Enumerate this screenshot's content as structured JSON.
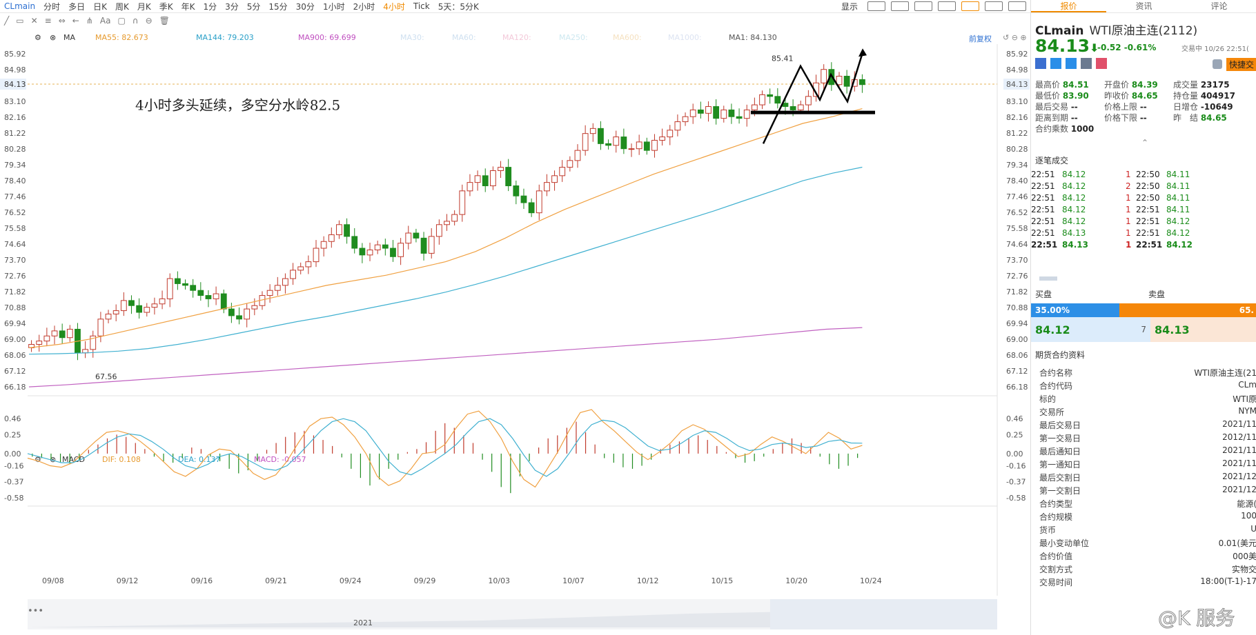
{
  "toolbar": {
    "symbol": "CLmain",
    "periods": [
      "分时",
      "多日",
      "日K",
      "周K",
      "月K",
      "季K",
      "年K",
      "1分",
      "3分",
      "5分",
      "15分",
      "30分",
      "1小时",
      "2小时",
      "4小时",
      "Tick",
      "5天：5分K"
    ],
    "active_period": "4小时",
    "right_label": "显示"
  },
  "indicators": {
    "ma_name": "MA",
    "ma55": "MA55: 82.673",
    "ma144": "MA144: 79.203",
    "ma900": "MA900: 69.699",
    "ma30": "MA30:",
    "ma60": "MA60:",
    "ma120": "MA120:",
    "ma250": "MA250:",
    "ma600": "MA600:",
    "ma1000": "MA1000:",
    "ma1": "MA1: 84.130",
    "fq": "前复权",
    "macd_name": "MACD",
    "dif": "DIF: 0.108",
    "dea": "DEA: 0.137",
    "macd": "MACD: -0.057"
  },
  "annotation": "4小时多头延续，多空分水岭82.5",
  "watermark": "@K 服务",
  "colors": {
    "up": "#c0392b",
    "down": "#1f8c1f",
    "ma55": "#f0a040",
    "ma144": "#3fb0d0",
    "ma900": "#c060c0",
    "dif": "#f0a040",
    "dea": "#3fb0d0"
  },
  "chart_data": [
    {
      "type": "candlestick",
      "title": "CLmain WTI原油主连(2112) 4小时",
      "y_ticks": [
        "85.92",
        "84.98",
        "84.13",
        "83.10",
        "82.16",
        "81.22",
        "80.28",
        "79.34",
        "78.40",
        "77.46",
        "76.52",
        "75.58",
        "74.64",
        "73.70",
        "72.76",
        "71.82",
        "70.88",
        "69.94",
        "69.00",
        "68.06",
        "67.12",
        "66.18"
      ],
      "ylim": [
        65.9,
        86.5
      ],
      "x_labels": [
        "09/08",
        "09/12",
        "09/16",
        "09/21",
        "09/24",
        "09/29",
        "10/03",
        "10/07",
        "10/12",
        "10/15",
        "10/20",
        "10/24"
      ],
      "high_label": "85.41",
      "low_label": "67.56",
      "last_price": "84.13",
      "close_path": [
        68.7,
        68.9,
        69.2,
        69.5,
        69.1,
        69.6,
        68.2,
        68.4,
        69.2,
        70.2,
        70.5,
        70.7,
        71.3,
        71.0,
        70.6,
        70.9,
        71.1,
        71.4,
        72.6,
        72.3,
        72.2,
        71.9,
        71.6,
        71.4,
        71.7,
        70.8,
        70.4,
        70.2,
        70.8,
        71.0,
        71.6,
        71.9,
        72.2,
        72.6,
        73.1,
        73.3,
        73.6,
        74.4,
        74.8,
        75.2,
        75.8,
        75.1,
        74.4,
        74.0,
        74.3,
        74.6,
        74.4,
        73.9,
        74.7,
        75.3,
        75.0,
        74.1,
        75.1,
        75.8,
        76.0,
        76.4,
        77.8,
        78.3,
        78.7,
        78.1,
        79.0,
        79.2,
        78.1,
        77.5,
        77.1,
        76.5,
        77.8,
        78.3,
        78.7,
        79.2,
        79.6,
        80.2,
        81.2,
        81.5,
        80.6,
        80.5,
        81.0,
        80.3,
        80.3,
        80.7,
        80.2,
        80.8,
        81.0,
        81.4,
        81.9,
        82.2,
        82.6,
        82.4,
        82.8,
        82.1,
        82.6,
        82.2,
        82.1,
        82.6,
        82.9,
        83.5,
        83.4,
        83.0,
        82.8,
        82.6,
        82.9,
        83.4,
        84.2,
        85.0,
        84.1,
        84.6,
        84.0,
        84.4,
        84.1
      ],
      "close_label_dates": "09/08 .. 10/26",
      "series": [
        {
          "name": "MA55",
          "values": [
            68.5,
            68.7,
            69.0,
            69.4,
            69.8,
            70.2,
            70.6,
            71.0,
            71.4,
            71.8,
            72.2,
            72.5,
            72.8,
            73.2,
            73.6,
            74.2,
            75.0,
            75.9,
            76.7,
            77.4,
            78.1,
            78.8,
            79.4,
            80.0,
            80.6,
            81.2,
            81.8,
            82.2,
            82.673
          ]
        },
        {
          "name": "MA144",
          "values": [
            68.12,
            68.15,
            68.2,
            68.3,
            68.45,
            68.7,
            69.0,
            69.35,
            69.7,
            70.05,
            70.35,
            70.7,
            71.05,
            71.4,
            71.8,
            72.25,
            72.75,
            73.3,
            73.85,
            74.4,
            74.95,
            75.5,
            76.05,
            76.6,
            77.2,
            77.8,
            78.4,
            78.85,
            79.203
          ]
        },
        {
          "name": "MA900",
          "values": [
            66.18,
            66.3,
            66.45,
            66.6,
            66.75,
            66.9,
            67.05,
            67.2,
            67.35,
            67.5,
            67.65,
            67.8,
            67.95,
            68.1,
            68.25,
            68.4,
            68.55,
            68.7,
            68.85,
            69.0,
            69.2,
            69.4,
            69.6,
            69.699
          ]
        }
      ]
    },
    {
      "type": "bar",
      "title": "MACD",
      "y_ticks": [
        "0.46",
        "0.25",
        "0.00",
        "-0.16",
        "-0.37",
        "-0.58"
      ],
      "ylim": [
        -0.6,
        0.58
      ],
      "macd_hist": [
        -0.04,
        -0.06,
        -0.08,
        -0.12,
        -0.14,
        -0.09,
        0.05,
        0.12,
        0.2,
        0.25,
        0.22,
        0.14,
        0.06,
        -0.04,
        -0.1,
        -0.12,
        -0.06,
        0.08,
        0.06,
        -0.04,
        -0.1,
        -0.2,
        -0.26,
        -0.22,
        -0.1,
        0.05,
        0.14,
        0.22,
        0.28,
        0.3,
        0.24,
        0.18,
        0.1,
        -0.05,
        -0.2,
        -0.32,
        -0.42,
        -0.34,
        -0.2,
        -0.08,
        0.02,
        0.06,
        0.15,
        0.3,
        0.4,
        0.34,
        0.24,
        0.14,
        -0.08,
        -0.24,
        -0.44,
        -0.52,
        -0.3,
        -0.1,
        0.08,
        0.2,
        0.24,
        0.34,
        0.42,
        0.28,
        0.12,
        -0.06,
        -0.12,
        -0.18,
        -0.2,
        -0.16,
        -0.08,
        0.06,
        0.12,
        0.16,
        0.2,
        0.24,
        0.18,
        0.1,
        0.02,
        -0.06,
        -0.12,
        -0.1,
        -0.04,
        0.06,
        0.14,
        0.2,
        0.14,
        0.08,
        -0.04,
        -0.14,
        -0.2,
        -0.16,
        -0.057
      ],
      "dif": [
        -0.06,
        -0.1,
        -0.16,
        -0.18,
        -0.12,
        0.02,
        0.16,
        0.28,
        0.3,
        0.26,
        0.16,
        0.04,
        -0.1,
        -0.24,
        -0.3,
        -0.2,
        -0.02,
        0.06,
        0.04,
        -0.1,
        -0.26,
        -0.34,
        -0.28,
        -0.1,
        0.14,
        0.36,
        0.46,
        0.48,
        0.38,
        0.22,
        0.0,
        -0.3,
        -0.42,
        -0.36,
        -0.2,
        0.0,
        0.02,
        0.12,
        0.34,
        0.52,
        0.56,
        0.42,
        0.2,
        -0.1,
        -0.34,
        -0.44,
        -0.22,
        0.02,
        0.3,
        0.54,
        0.58,
        0.42,
        0.3,
        0.16,
        0.02,
        -0.08,
        0.02,
        0.14,
        0.3,
        0.38,
        0.32,
        0.2,
        0.08,
        -0.04,
        0.0,
        0.12,
        0.22,
        0.16,
        0.08,
        0.0,
        0.14,
        0.28,
        0.2,
        0.06,
        0.108
      ],
      "dea": [
        0.0,
        -0.04,
        -0.08,
        -0.12,
        -0.12,
        -0.06,
        0.04,
        0.14,
        0.22,
        0.26,
        0.24,
        0.16,
        0.06,
        -0.06,
        -0.16,
        -0.2,
        -0.14,
        -0.04,
        0.0,
        -0.04,
        -0.12,
        -0.2,
        -0.22,
        -0.16,
        -0.02,
        0.14,
        0.3,
        0.42,
        0.46,
        0.42,
        0.3,
        0.1,
        -0.1,
        -0.24,
        -0.28,
        -0.2,
        -0.1,
        0.0,
        0.12,
        0.28,
        0.42,
        0.46,
        0.38,
        0.2,
        -0.02,
        -0.22,
        -0.3,
        -0.2,
        0.0,
        0.22,
        0.38,
        0.44,
        0.42,
        0.34,
        0.22,
        0.1,
        0.04,
        0.06,
        0.14,
        0.24,
        0.3,
        0.28,
        0.2,
        0.1,
        0.04,
        0.06,
        0.12,
        0.14,
        0.12,
        0.08,
        0.1,
        0.16,
        0.18,
        0.14,
        0.137
      ]
    }
  ],
  "navigator_year": "2021",
  "side": {
    "tabs": [
      "报价",
      "资讯",
      "评论"
    ],
    "active_tab": "报价",
    "symbol": "CLmain",
    "name": "WTI原油主连(2112)",
    "price": "84.13",
    "change": "-0.52",
    "change_pct": "-0.61%",
    "time": "交易中 10/26 22:51(",
    "quick": "快捷交",
    "quote": [
      [
        "最高价",
        "84.51",
        "开盘价",
        "84.39",
        "成交量",
        "23175"
      ],
      [
        "最低价",
        "83.90",
        "昨收价",
        "84.65",
        "持仓量",
        "404917"
      ],
      [
        "最后交易",
        "--",
        "价格上限",
        "--",
        "日增仓",
        "-10649"
      ],
      [
        "距离到期",
        "--",
        "价格下限",
        "--",
        "昨　结",
        "84.65"
      ],
      [
        "合约乘数",
        "1000",
        "",
        "",
        "",
        ""
      ]
    ],
    "trades_title": "逐笔成交",
    "trades": [
      [
        "22:51",
        "84.12",
        "1",
        "22:50",
        "84.11"
      ],
      [
        "22:51",
        "84.12",
        "2",
        "22:50",
        "84.11"
      ],
      [
        "22:51",
        "84.12",
        "1",
        "22:50",
        "84.11"
      ],
      [
        "22:51",
        "84.12",
        "1",
        "22:51",
        "84.11"
      ],
      [
        "22:51",
        "84.12",
        "1",
        "22:51",
        "84.12"
      ],
      [
        "22:51",
        "84.13",
        "1",
        "22:51",
        "84.12"
      ],
      [
        "22:51",
        "84.13",
        "1",
        "22:51",
        "84.12"
      ]
    ],
    "buy_label": "买盘",
    "sell_label": "卖盘",
    "buy_pct": "35.00%",
    "sell_pct": "65.",
    "buy_ratio": 0.35,
    "bid": "84.12",
    "bid_qty": "7",
    "ask": "84.13",
    "contract_title": "期货合约资料",
    "contract": [
      [
        "合约名称",
        "WTI原油主连(21"
      ],
      [
        "合约代码",
        "CLm"
      ],
      [
        "标的",
        "WTI原"
      ],
      [
        "交易所",
        "NYM"
      ],
      [
        "最后交易日",
        "2021/11"
      ],
      [
        "第一交易日",
        "2012/11"
      ],
      [
        "最后通知日",
        "2021/11"
      ],
      [
        "第一通知日",
        "2021/11"
      ],
      [
        "最后交割日",
        "2021/12"
      ],
      [
        "第一交割日",
        "2021/12"
      ],
      [
        "合约类型",
        "能源("
      ],
      [
        "合约规模",
        "100"
      ],
      [
        "货币",
        "U"
      ],
      [
        "最小变动单位",
        "0.01(美元"
      ],
      [
        "合约价值",
        "000美"
      ],
      [
        "交割方式",
        "实物交"
      ],
      [
        "交易时间",
        "18:00(T-1)-17"
      ]
    ]
  }
}
